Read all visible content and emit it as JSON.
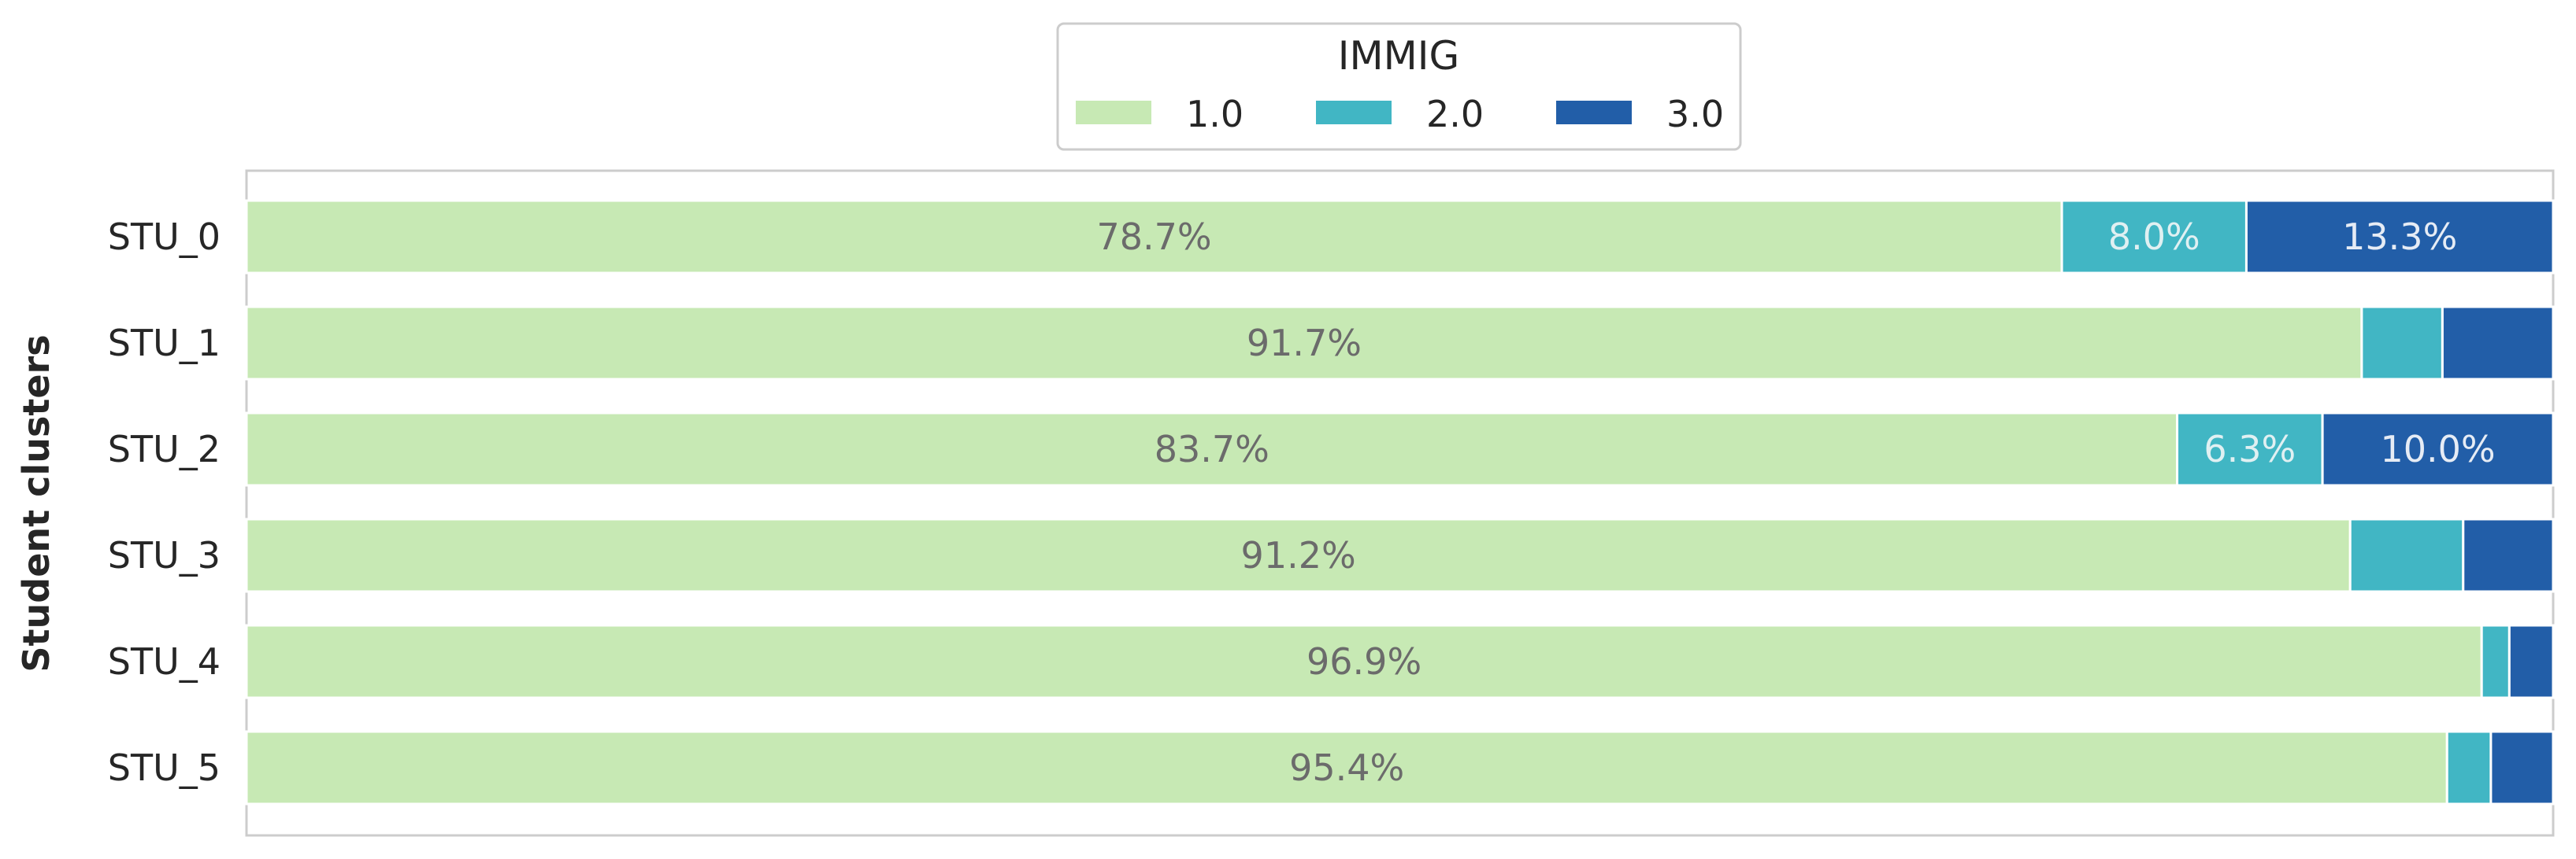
{
  "chart_data": {
    "type": "bar",
    "orientation": "horizontal",
    "stacked": true,
    "normalized_percent": true,
    "ylabel": "Student clusters",
    "xlabel": "",
    "xlim": [
      0,
      100
    ],
    "grid": false,
    "legend": {
      "title": "IMMIG",
      "placement": "top-center",
      "columns": 3
    },
    "categories": [
      "STU_0",
      "STU_1",
      "STU_2",
      "STU_3",
      "STU_4",
      "STU_5"
    ],
    "series": [
      {
        "name": "1.0",
        "color": "#c7e9b4",
        "label_color": "#6b6b6b",
        "values": [
          78.7,
          91.7,
          83.7,
          91.2,
          96.9,
          95.4
        ],
        "labels": [
          "78.7%",
          "91.7%",
          "83.7%",
          "91.2%",
          "96.9%",
          "95.4%"
        ]
      },
      {
        "name": "2.0",
        "color": "#41b6c4",
        "label_color": "#e0f0f2",
        "values": [
          8.0,
          3.5,
          6.3,
          4.9,
          1.2,
          1.9
        ],
        "labels": [
          "8.0%",
          "",
          "6.3%",
          "",
          "",
          ""
        ]
      },
      {
        "name": "3.0",
        "color": "#225ea8",
        "label_color": "#e6ecf5",
        "values": [
          13.3,
          4.8,
          10.0,
          3.9,
          1.9,
          2.7
        ],
        "labels": [
          "13.3%",
          "",
          "10.0%",
          "",
          "",
          ""
        ]
      }
    ]
  }
}
